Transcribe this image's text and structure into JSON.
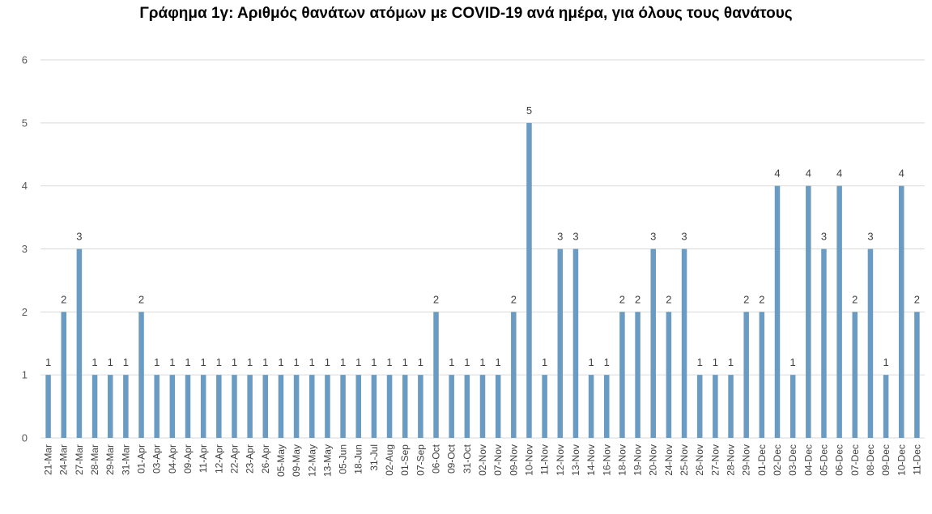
{
  "chart_data": {
    "type": "bar",
    "title": "Γράφημα 1γ: Αριθμός θανάτων ατόμων με COVID-19 ανά ημέρα, για όλους τους θανάτους",
    "xlabel": "",
    "ylabel": "",
    "ylim": [
      0,
      6
    ],
    "yticks": [
      "0",
      "1",
      "2",
      "3",
      "4",
      "5",
      "6"
    ],
    "grid": true,
    "bar_color": "#6a9bc2",
    "categories": [
      "21-Mar",
      "24-Mar",
      "27-Mar",
      "28-Mar",
      "29-Mar",
      "31-Mar",
      "01-Apr",
      "03-Apr",
      "04-Apr",
      "09-Apr",
      "11-Apr",
      "12-Apr",
      "22-Apr",
      "23-Apr",
      "26-Apr",
      "05-May",
      "09-May",
      "12-May",
      "13-May",
      "05-Jun",
      "18-Jun",
      "31-Jul",
      "02-Aug",
      "01-Sep",
      "07-Sep",
      "06-Oct",
      "09-Oct",
      "31-Oct",
      "02-Nov",
      "07-Nov",
      "09-Nov",
      "10-Nov",
      "11-Nov",
      "12-Nov",
      "13-Nov",
      "14-Nov",
      "16-Nov",
      "18-Nov",
      "19-Nov",
      "20-Nov",
      "24-Nov",
      "25-Nov",
      "26-Nov",
      "27-Nov",
      "28-Nov",
      "29-Nov",
      "01-Dec",
      "02-Dec",
      "03-Dec",
      "04-Dec",
      "05-Dec",
      "06-Dec",
      "07-Dec",
      "08-Dec",
      "09-Dec",
      "10-Dec",
      "11-Dec"
    ],
    "values": [
      1,
      2,
      3,
      1,
      1,
      1,
      2,
      1,
      1,
      1,
      1,
      1,
      1,
      1,
      1,
      1,
      1,
      1,
      1,
      1,
      1,
      1,
      1,
      1,
      1,
      2,
      1,
      1,
      1,
      1,
      2,
      5,
      1,
      3,
      3,
      1,
      1,
      2,
      2,
      3,
      2,
      3,
      1,
      1,
      1,
      2,
      2,
      4,
      1,
      4,
      3,
      4,
      2,
      3,
      1,
      4,
      2
    ]
  }
}
